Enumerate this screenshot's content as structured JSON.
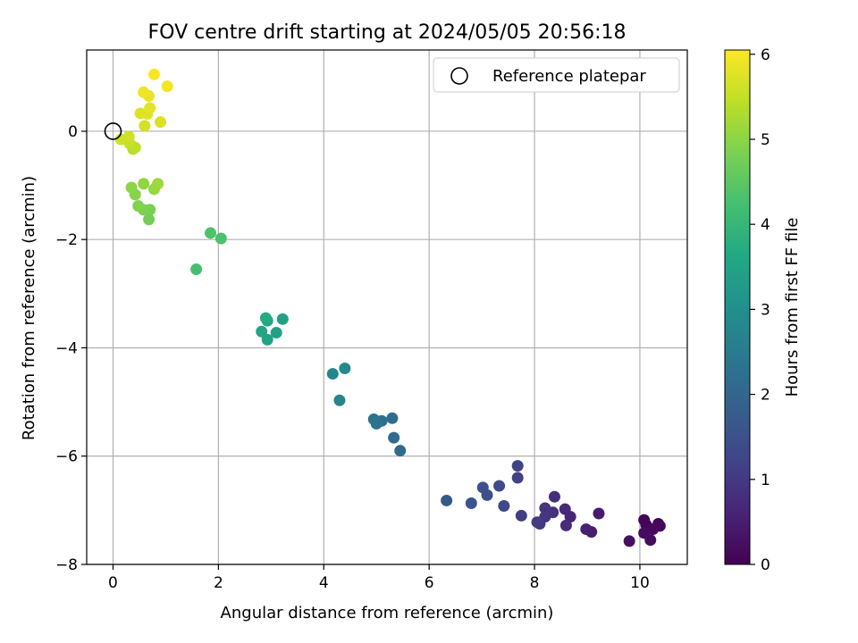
{
  "chart_data": {
    "type": "scatter",
    "title": "FOV centre drift starting at 2024/05/05 20:56:18",
    "xlabel": "Angular distance from reference (arcmin)",
    "ylabel": "Rotation from reference (arcmin)",
    "xlim": [
      -0.5,
      10.9
    ],
    "ylim": [
      -8.0,
      1.5
    ],
    "xticks": [
      0,
      2,
      4,
      6,
      8,
      10
    ],
    "yticks": [
      0,
      -2,
      -4,
      -6,
      -8
    ],
    "xtick_labels": [
      "0",
      "2",
      "4",
      "6",
      "8",
      "10"
    ],
    "ytick_labels": [
      "0",
      "−2",
      "−4",
      "−6",
      "−8"
    ],
    "grid": true,
    "legend": {
      "placement": "top-right",
      "entries": [
        {
          "label": "Reference platepar",
          "marker": "open-circle"
        }
      ]
    },
    "reference_point": {
      "x": 0,
      "y": 0
    },
    "colorbar": {
      "label": "Hours from first FF file",
      "range": [
        0,
        6.05
      ],
      "ticks": [
        0,
        1,
        2,
        3,
        4,
        5,
        6
      ],
      "tick_labels": [
        "0",
        "1",
        "2",
        "3",
        "4",
        "5",
        "6"
      ],
      "colormap": "viridis"
    },
    "points": [
      {
        "x": 10.08,
        "y": -7.18,
        "t": 0.03
      },
      {
        "x": 10.12,
        "y": -7.27,
        "t": 0.06
      },
      {
        "x": 10.35,
        "y": -7.25,
        "t": 0.09
      },
      {
        "x": 10.38,
        "y": -7.29,
        "t": 0.12
      },
      {
        "x": 10.25,
        "y": -7.35,
        "t": 0.15
      },
      {
        "x": 10.08,
        "y": -7.42,
        "t": 0.18
      },
      {
        "x": 10.2,
        "y": -7.55,
        "t": 0.21
      },
      {
        "x": 9.8,
        "y": -7.57,
        "t": 0.25
      },
      {
        "x": 9.22,
        "y": -7.06,
        "t": 0.45
      },
      {
        "x": 9.08,
        "y": -7.4,
        "t": 0.5
      },
      {
        "x": 8.98,
        "y": -7.35,
        "t": 0.55
      },
      {
        "x": 8.68,
        "y": -7.12,
        "t": 0.62
      },
      {
        "x": 8.58,
        "y": -6.98,
        "t": 0.7
      },
      {
        "x": 8.6,
        "y": -7.28,
        "t": 0.75
      },
      {
        "x": 8.38,
        "y": -6.75,
        "t": 0.8
      },
      {
        "x": 8.35,
        "y": -7.04,
        "t": 0.85
      },
      {
        "x": 8.2,
        "y": -6.96,
        "t": 0.9
      },
      {
        "x": 8.2,
        "y": -7.12,
        "t": 0.95
      },
      {
        "x": 8.1,
        "y": -7.25,
        "t": 1.0
      },
      {
        "x": 8.05,
        "y": -7.22,
        "t": 1.05
      },
      {
        "x": 7.75,
        "y": -7.1,
        "t": 1.1
      },
      {
        "x": 7.68,
        "y": -6.4,
        "t": 1.15
      },
      {
        "x": 7.68,
        "y": -6.18,
        "t": 1.2
      },
      {
        "x": 7.42,
        "y": -6.92,
        "t": 1.3
      },
      {
        "x": 7.33,
        "y": -6.55,
        "t": 1.38
      },
      {
        "x": 7.1,
        "y": -6.72,
        "t": 1.45
      },
      {
        "x": 7.02,
        "y": -6.58,
        "t": 1.5
      },
      {
        "x": 6.8,
        "y": -6.87,
        "t": 1.6
      },
      {
        "x": 6.33,
        "y": -6.82,
        "t": 1.7
      },
      {
        "x": 5.45,
        "y": -5.9,
        "t": 2.05
      },
      {
        "x": 5.33,
        "y": -5.66,
        "t": 2.1
      },
      {
        "x": 5.3,
        "y": -5.3,
        "t": 2.15
      },
      {
        "x": 5.1,
        "y": -5.35,
        "t": 2.2
      },
      {
        "x": 5.0,
        "y": -5.4,
        "t": 2.25
      },
      {
        "x": 4.95,
        "y": -5.32,
        "t": 2.3
      },
      {
        "x": 4.3,
        "y": -4.97,
        "t": 2.7
      },
      {
        "x": 4.17,
        "y": -4.48,
        "t": 2.75
      },
      {
        "x": 4.4,
        "y": -4.38,
        "t": 2.8
      },
      {
        "x": 3.22,
        "y": -3.47,
        "t": 3.4
      },
      {
        "x": 3.1,
        "y": -3.72,
        "t": 3.45
      },
      {
        "x": 2.93,
        "y": -3.85,
        "t": 3.5
      },
      {
        "x": 2.82,
        "y": -3.7,
        "t": 3.55
      },
      {
        "x": 2.93,
        "y": -3.5,
        "t": 3.6
      },
      {
        "x": 2.9,
        "y": -3.45,
        "t": 3.65
      },
      {
        "x": 1.58,
        "y": -2.55,
        "t": 4.25
      },
      {
        "x": 2.05,
        "y": -1.98,
        "t": 4.3
      },
      {
        "x": 1.85,
        "y": -1.88,
        "t": 4.35
      },
      {
        "x": 0.68,
        "y": -1.63,
        "t": 4.75
      },
      {
        "x": 0.7,
        "y": -1.45,
        "t": 4.8
      },
      {
        "x": 0.58,
        "y": -1.45,
        "t": 4.85
      },
      {
        "x": 0.48,
        "y": -1.38,
        "t": 4.9
      },
      {
        "x": 0.42,
        "y": -1.17,
        "t": 4.95
      },
      {
        "x": 0.35,
        "y": -1.04,
        "t": 5.0
      },
      {
        "x": 0.58,
        "y": -0.97,
        "t": 5.05
      },
      {
        "x": 0.78,
        "y": -1.07,
        "t": 5.1
      },
      {
        "x": 0.85,
        "y": -0.97,
        "t": 5.15
      },
      {
        "x": 0.38,
        "y": -0.33,
        "t": 5.4
      },
      {
        "x": 0.42,
        "y": -0.3,
        "t": 5.45
      },
      {
        "x": 0.32,
        "y": -0.23,
        "t": 5.5
      },
      {
        "x": 0.27,
        "y": -0.16,
        "t": 5.55
      },
      {
        "x": 0.15,
        "y": -0.15,
        "t": 5.58
      },
      {
        "x": 0.3,
        "y": -0.1,
        "t": 5.6
      },
      {
        "x": 0.6,
        "y": 0.1,
        "t": 5.65
      },
      {
        "x": 0.9,
        "y": 0.17,
        "t": 5.7
      },
      {
        "x": 0.52,
        "y": 0.33,
        "t": 5.75
      },
      {
        "x": 0.65,
        "y": 0.32,
        "t": 5.78
      },
      {
        "x": 0.7,
        "y": 0.43,
        "t": 5.8
      },
      {
        "x": 0.68,
        "y": 0.65,
        "t": 5.85
      },
      {
        "x": 0.58,
        "y": 0.72,
        "t": 5.9
      },
      {
        "x": 1.03,
        "y": 0.83,
        "t": 5.95
      },
      {
        "x": 0.78,
        "y": 1.05,
        "t": 6.0
      }
    ]
  }
}
